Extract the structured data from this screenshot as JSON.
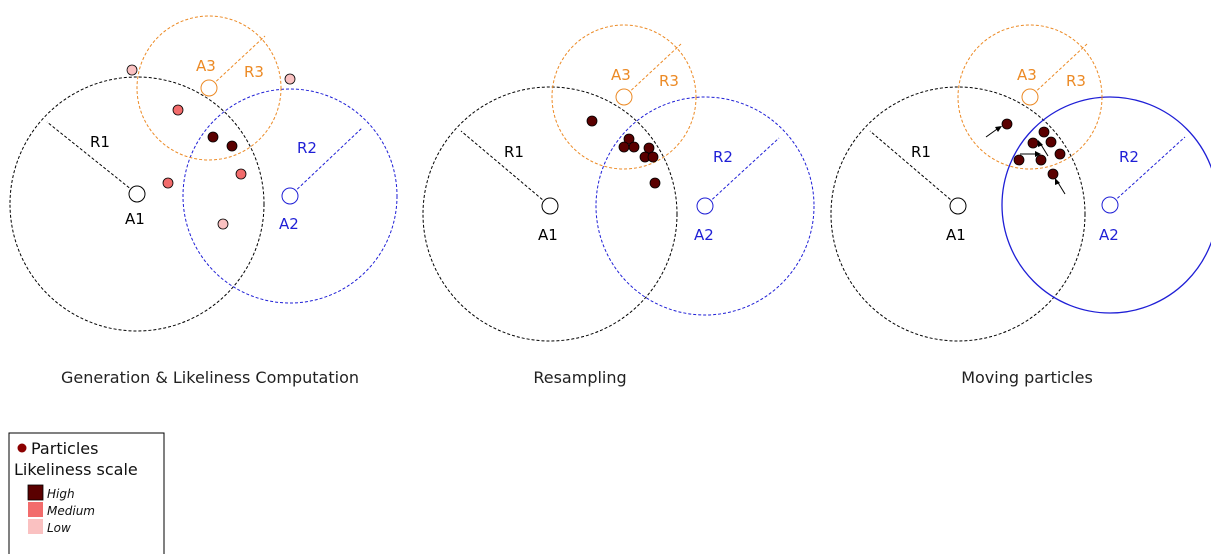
{
  "colors": {
    "a1": "#000000",
    "a2": "#1f1fd6",
    "a3": "#ec8a25",
    "high": "#5a0000",
    "medium": "#f26c6c",
    "low": "#fac1c1",
    "bullet": "#8b0000"
  },
  "panels": [
    {
      "caption": "Generation & Likeliness Computation",
      "anchors": {
        "a1": "A1",
        "a2": "A2",
        "a3": "A3"
      },
      "radii": {
        "r1": "R1",
        "r2": "R2",
        "r3": "R3"
      }
    },
    {
      "caption": "Resampling",
      "anchors": {
        "a1": "A1",
        "a2": "A2",
        "a3": "A3"
      },
      "radii": {
        "r1": "R1",
        "r2": "R2",
        "r3": "R3"
      }
    },
    {
      "caption": "Moving particles",
      "anchors": {
        "a1": "A1",
        "a2": "A2",
        "a3": "A3"
      },
      "radii": {
        "r1": "R1",
        "r2": "R2",
        "r3": "R3"
      }
    }
  ],
  "legend": {
    "particles_label": "Particles",
    "scale_title": "Likeliness scale",
    "levels": [
      {
        "label": "High",
        "color": "#5a0000"
      },
      {
        "label": "Medium",
        "color": "#f26c6c"
      },
      {
        "label": "Low",
        "color": "#fac1c1"
      }
    ]
  }
}
